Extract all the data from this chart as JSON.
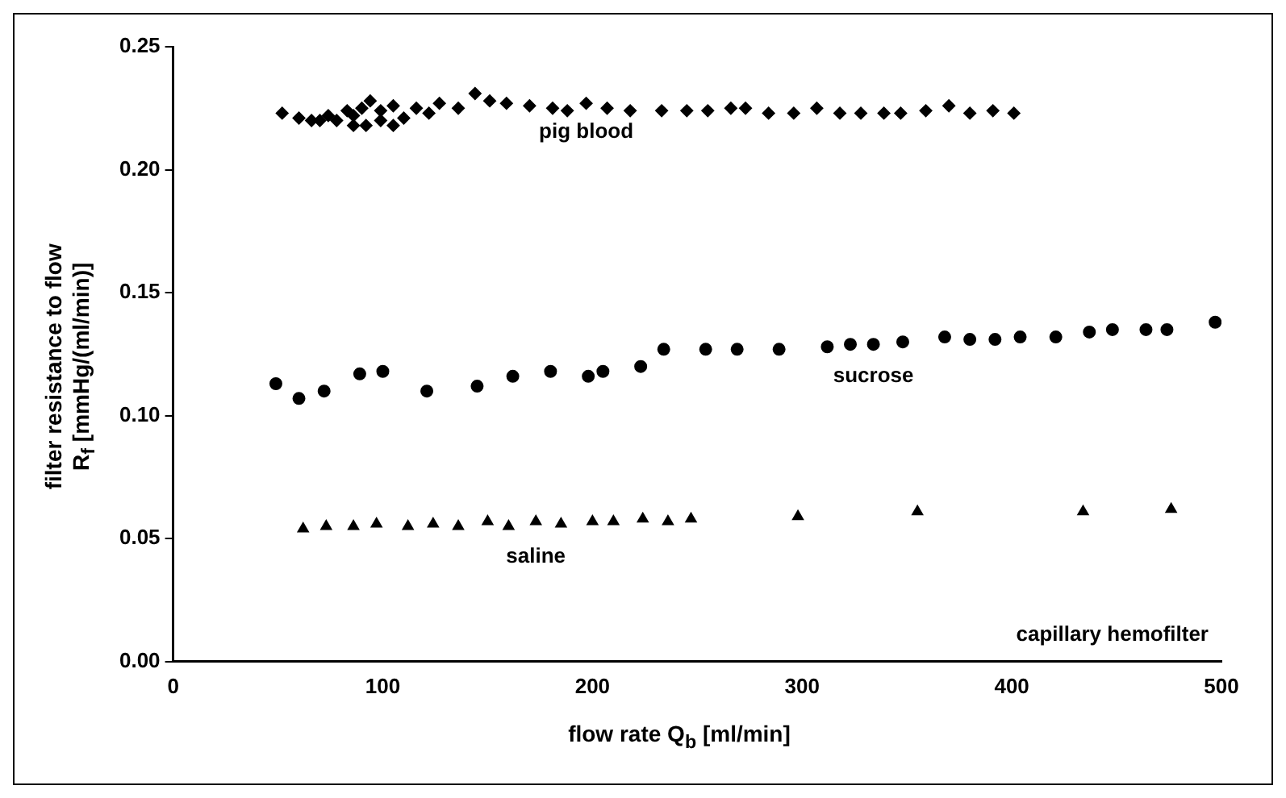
{
  "chart_data": {
    "type": "scatter",
    "xlabel": "flow rate Q$_{b}$ [ml/min]",
    "ylabel": "filter resistance to flow\nR$_{f}$ [mmHg/(ml/min)]",
    "xlim": [
      0,
      500
    ],
    "xticks": [
      0,
      100,
      200,
      300,
      400,
      500
    ],
    "ylim": [
      0,
      0.25
    ],
    "yticks": [
      {
        "value": 0,
        "label": "0.00"
      },
      {
        "value": 0.05,
        "label": "0.05"
      },
      {
        "value": 0.1,
        "label": "0.10"
      },
      {
        "value": 0.15,
        "label": "0.15"
      },
      {
        "value": 0.2,
        "label": "0.20"
      },
      {
        "value": 0.25,
        "label": "0.25"
      }
    ],
    "grid": false,
    "legend": false,
    "annotations": [
      "capillary hemofilter"
    ],
    "series": [
      {
        "name": "pig blood",
        "color": "#000000",
        "marker": "diamond",
        "x": [
          52,
          60,
          66,
          70,
          74,
          78,
          83,
          86,
          90,
          94,
          99,
          105,
          110,
          116,
          122,
          127,
          136,
          144,
          151,
          159,
          170,
          181,
          188,
          197,
          207,
          218,
          233,
          245,
          255,
          266,
          273,
          284,
          296,
          307,
          318,
          328,
          339,
          347,
          359,
          370,
          380,
          391,
          401,
          86,
          92,
          99,
          105
        ],
        "values": [
          0.223,
          0.221,
          0.22,
          0.22,
          0.222,
          0.22,
          0.224,
          0.222,
          0.225,
          0.228,
          0.224,
          0.226,
          0.221,
          0.225,
          0.223,
          0.227,
          0.225,
          0.231,
          0.228,
          0.227,
          0.226,
          0.225,
          0.224,
          0.227,
          0.225,
          0.224,
          0.224,
          0.224,
          0.224,
          0.225,
          0.225,
          0.223,
          0.223,
          0.225,
          0.223,
          0.223,
          0.223,
          0.223,
          0.224,
          0.226,
          0.223,
          0.224,
          0.223,
          0.218,
          0.218,
          0.22,
          0.218
        ]
      },
      {
        "name": "sucrose",
        "color": "#000000",
        "marker": "circle",
        "x": [
          49,
          60,
          72,
          89,
          100,
          121,
          145,
          162,
          180,
          198,
          205,
          223,
          234,
          254,
          269,
          289,
          312,
          323,
          334,
          348,
          368,
          380,
          392,
          404,
          421,
          437,
          448,
          464,
          474,
          497
        ],
        "values": [
          0.113,
          0.107,
          0.11,
          0.117,
          0.118,
          0.11,
          0.112,
          0.116,
          0.118,
          0.116,
          0.118,
          0.12,
          0.127,
          0.127,
          0.127,
          0.127,
          0.128,
          0.129,
          0.129,
          0.13,
          0.132,
          0.131,
          0.131,
          0.132,
          0.132,
          0.134,
          0.135,
          0.135,
          0.135,
          0.138
        ]
      },
      {
        "name": "saline",
        "color": "#000000",
        "marker": "triangle",
        "x": [
          62,
          73,
          86,
          97,
          112,
          124,
          136,
          150,
          160,
          173,
          185,
          200,
          210,
          224,
          236,
          247,
          298,
          355,
          434,
          476
        ],
        "values": [
          0.054,
          0.055,
          0.055,
          0.056,
          0.055,
          0.056,
          0.055,
          0.057,
          0.055,
          0.057,
          0.056,
          0.057,
          0.057,
          0.058,
          0.057,
          0.058,
          0.059,
          0.061,
          0.061,
          0.062
        ]
      }
    ]
  }
}
